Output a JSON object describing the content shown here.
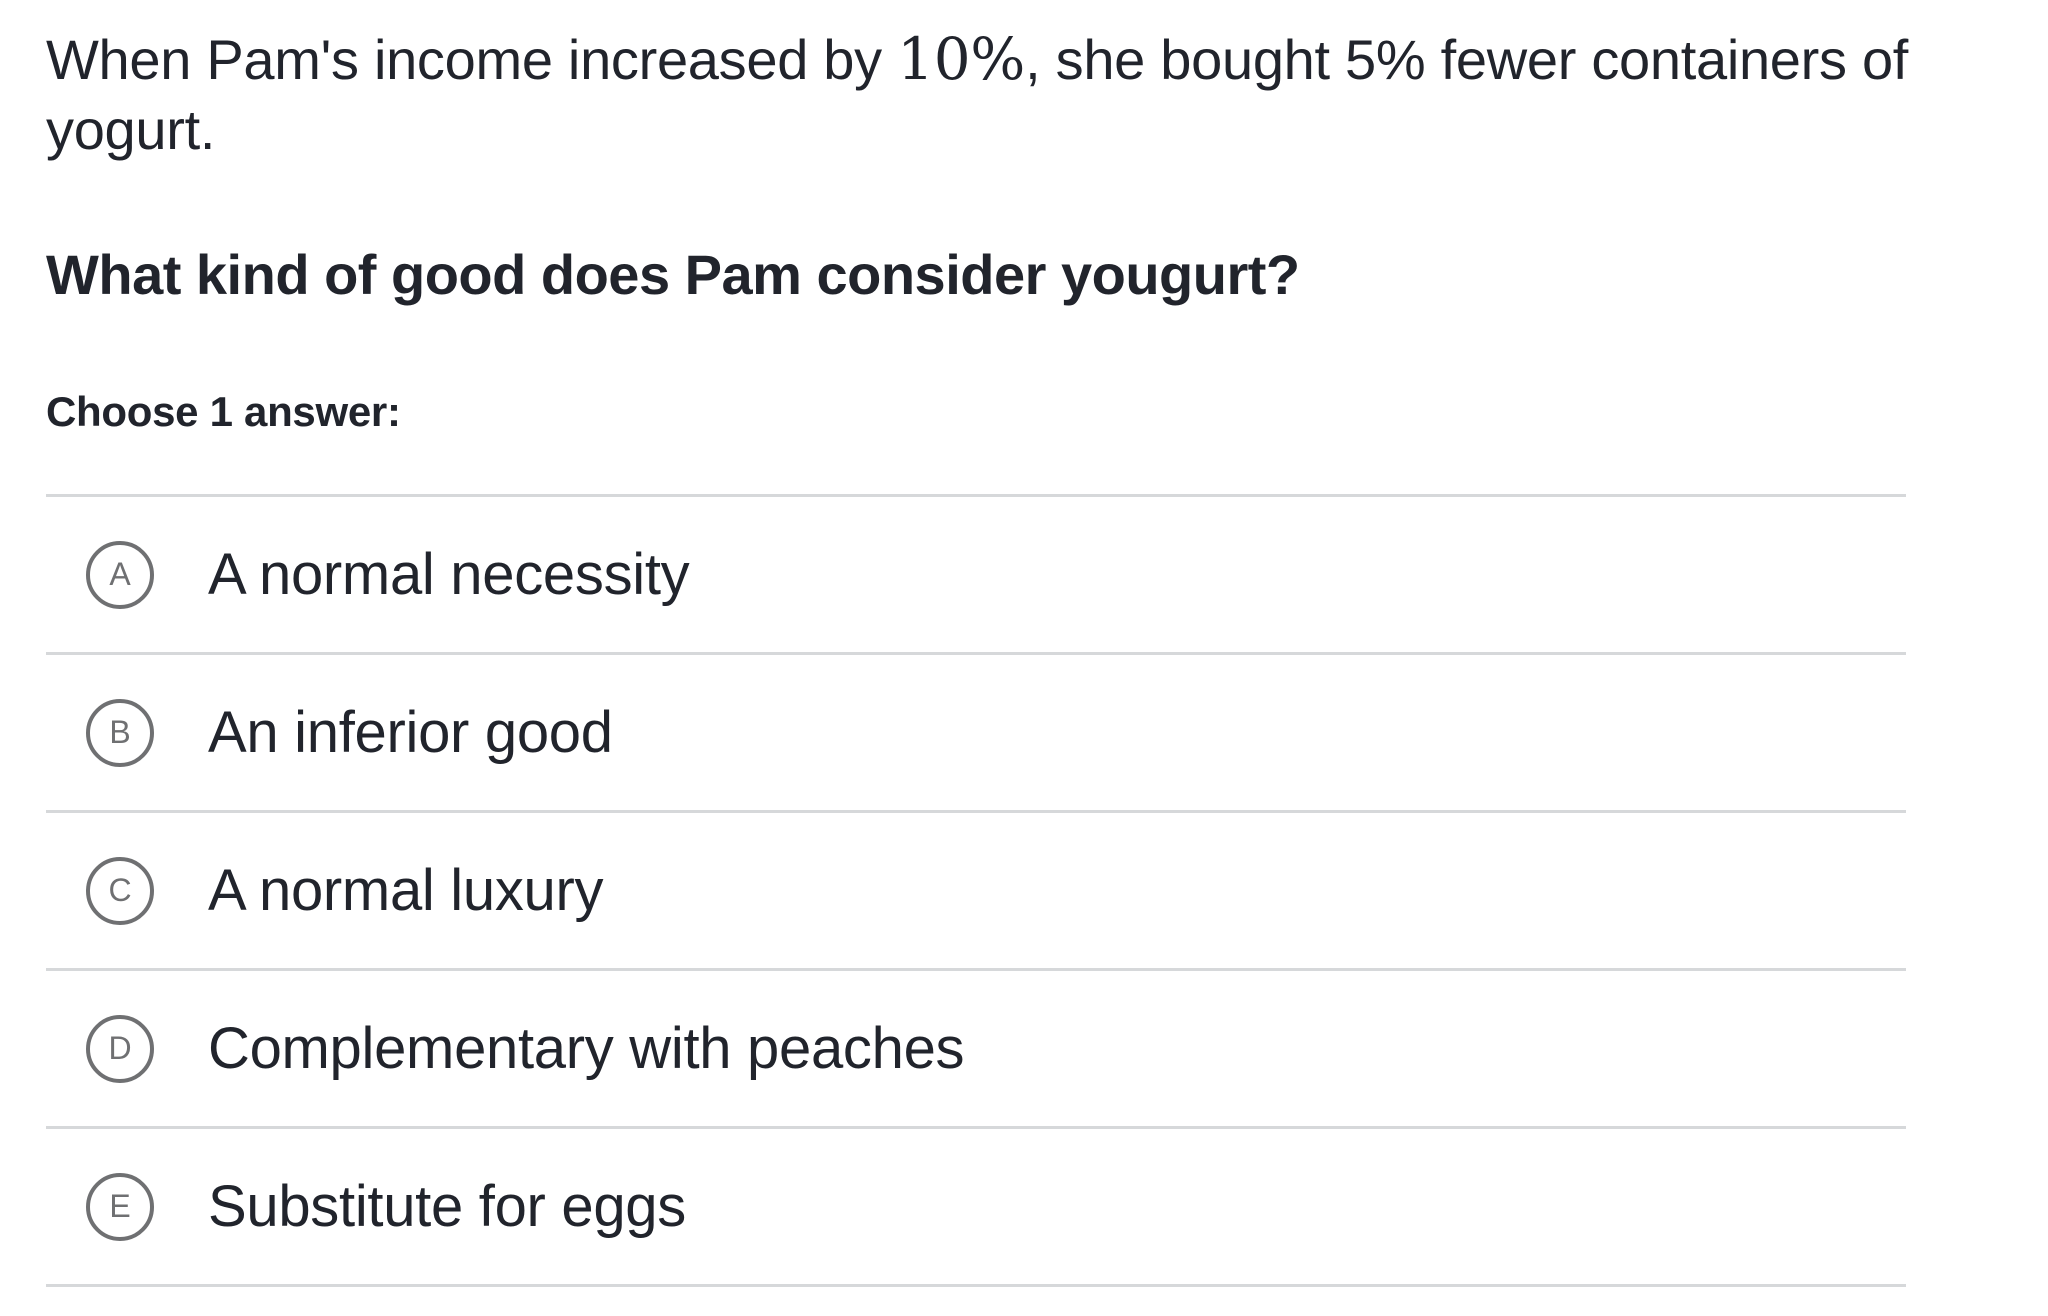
{
  "question": {
    "text_before": "When Pam's income increased by ",
    "math_value": "10%",
    "text_after": ", she bought 5% fewer containers of yogurt."
  },
  "prompt": "What kind of good does Pam consider yougurt?",
  "choose_label": "Choose 1 answer:",
  "choices": [
    {
      "letter": "A",
      "text": "A normal necessity"
    },
    {
      "letter": "B",
      "text": "An inferior good"
    },
    {
      "letter": "C",
      "text": "A normal luxury"
    },
    {
      "letter": "D",
      "text": "Complementary with peaches"
    },
    {
      "letter": "E",
      "text": "Substitute for eggs"
    }
  ]
}
